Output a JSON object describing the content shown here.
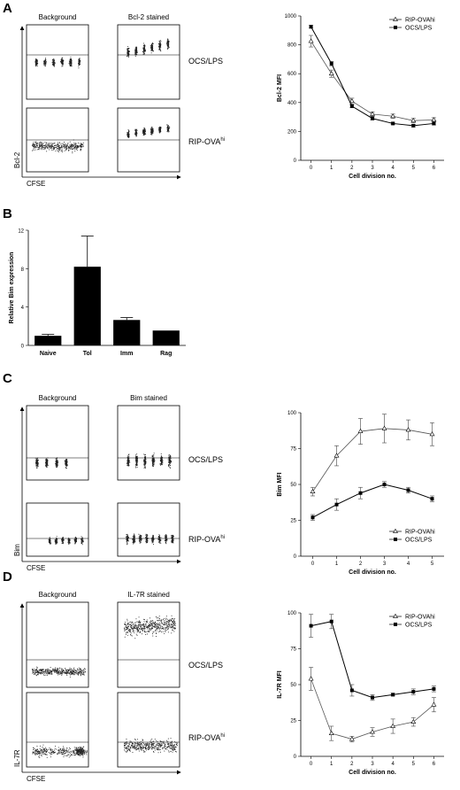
{
  "panels": {
    "A": {
      "letter": "A",
      "flow": {
        "col_labels": [
          "Background",
          "Bcl-2 stained"
        ],
        "row_labels": [
          "OCS/LPS",
          "RIP-OVA"
        ],
        "row_label_sup": [
          "",
          "hi"
        ],
        "y_axis": "Bcl-2",
        "x_axis": "CFSE"
      }
    },
    "B": {
      "letter": "B"
    },
    "C": {
      "letter": "C",
      "flow": {
        "col_labels": [
          "Background",
          "Bim stained"
        ],
        "row_labels": [
          "OCS/LPS",
          "RIP-OVA"
        ],
        "row_label_sup": [
          "",
          "hi"
        ],
        "y_axis": "Bim",
        "x_axis": "CFSE"
      }
    },
    "D": {
      "letter": "D",
      "flow": {
        "col_labels": [
          "Background",
          "IL-7R stained"
        ],
        "row_labels": [
          "OCS/LPS",
          "RIP-OVA"
        ],
        "row_label_sup": [
          "",
          "hi"
        ],
        "y_axis": "IL-7R",
        "x_axis": "CFSE"
      }
    }
  },
  "chart_data": [
    {
      "id": "A",
      "type": "line",
      "xlabel": "Cell division no.",
      "ylabel": "Bcl-2 MFI",
      "x": [
        0,
        1,
        2,
        3,
        4,
        5,
        6
      ],
      "xlim": [
        -0.5,
        6.5
      ],
      "ylim": [
        0,
        1000
      ],
      "yticks": [
        0,
        200,
        400,
        600,
        800,
        1000
      ],
      "legend_position": "top-right",
      "series": [
        {
          "name": "RIP-OVAhi",
          "marker": "open-triangle",
          "values": [
            825,
            600,
            410,
            320,
            305,
            275,
            280
          ],
          "err": [
            40,
            25,
            20,
            15,
            15,
            15,
            15
          ]
        },
        {
          "name": "OCS/LPS",
          "marker": "filled-square",
          "values": [
            925,
            670,
            375,
            290,
            255,
            240,
            255
          ],
          "err": [
            10,
            15,
            10,
            10,
            8,
            8,
            10
          ]
        }
      ]
    },
    {
      "id": "B",
      "type": "bar",
      "ylabel": "Relative Bim expression",
      "categories": [
        "Naive",
        "Tol",
        "Imm",
        "Rag"
      ],
      "values": [
        1.0,
        8.2,
        2.65,
        1.55
      ],
      "err": [
        0.15,
        3.2,
        0.25,
        0.0
      ],
      "ylim": [
        0,
        12
      ],
      "yticks": [
        0,
        4,
        8,
        12
      ]
    },
    {
      "id": "C",
      "type": "line",
      "xlabel": "Cell division no.",
      "ylabel": "Bim MFI",
      "x": [
        0,
        1,
        2,
        3,
        4,
        5
      ],
      "xlim": [
        -0.5,
        5.5
      ],
      "ylim": [
        0,
        100
      ],
      "yticks": [
        0,
        25,
        50,
        75,
        100
      ],
      "legend_position": "bottom-right",
      "series": [
        {
          "name": "RIP-OVAhi",
          "marker": "open-triangle",
          "values": [
            45,
            70,
            87,
            89,
            88,
            85
          ],
          "err": [
            3,
            7,
            9,
            10,
            7,
            8
          ]
        },
        {
          "name": "OCS/LPS",
          "marker": "filled-square",
          "values": [
            27,
            36,
            44,
            50,
            46,
            40
          ],
          "err": [
            2,
            4,
            4,
            2,
            2,
            2
          ]
        }
      ]
    },
    {
      "id": "D",
      "type": "line",
      "xlabel": "Cell division no.",
      "ylabel": "IL-7R MFI",
      "x": [
        0,
        1,
        2,
        3,
        4,
        5,
        6
      ],
      "xlim": [
        -0.5,
        6.5
      ],
      "ylim": [
        0,
        100
      ],
      "yticks": [
        0,
        25,
        50,
        75,
        100
      ],
      "legend_position": "top-right",
      "series": [
        {
          "name": "RIP-OVAhi",
          "marker": "open-triangle",
          "values": [
            54,
            16,
            12,
            17,
            21,
            24,
            36
          ],
          "err": [
            8,
            5,
            2,
            3,
            5,
            3,
            5
          ]
        },
        {
          "name": "OCS/LPS",
          "marker": "filled-square",
          "values": [
            91,
            94,
            46,
            41,
            43,
            45,
            47
          ],
          "err": [
            8,
            5,
            4,
            2,
            1,
            2,
            2
          ]
        }
      ]
    }
  ]
}
